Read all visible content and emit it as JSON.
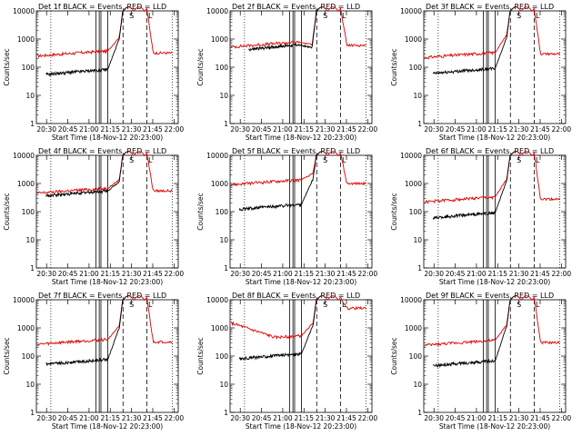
{
  "chart_data": [
    {
      "type": "line",
      "title": "Det 1f BLACK = Events, RED = LLD",
      "xlabel": "Start Time (18-Nov-12 20:23:00)",
      "ylabel": "Counts/sec",
      "ylim": [
        1,
        10000
      ],
      "yscale": "log",
      "yticks": [
        "1",
        "10",
        "100",
        "1000",
        "10000"
      ],
      "xticks": [
        "20:30",
        "20:45",
        "21:00",
        "21:15",
        "21:30",
        "21:45",
        "22:00"
      ],
      "grid": false,
      "black": {
        "start": 20.49,
        "end": 21.46,
        "base": 55,
        "ramp_at": 21.22,
        "ramp_to": 900
      },
      "red": {
        "start": 20.39,
        "end": 21.98,
        "base": 250,
        "end_level": 320,
        "ramp_at": 21.22,
        "ramp_to": 1100
      },
      "peak_level": 12000,
      "peak_start": 21.4,
      "peak_end": 21.68,
      "solid_lines": [
        21.08,
        21.12,
        21.14,
        21.22
      ],
      "dash_lines": [
        21.4,
        21.68
      ],
      "dot_lines": [
        20.55,
        21.98
      ],
      "markers": [
        {
          "x": 21.5,
          "label": "S"
        },
        {
          "x": 21.72,
          "label": "L"
        }
      ]
    },
    {
      "type": "line",
      "title": "Det 2f BLACK = Events, RED = LLD",
      "xlabel": "Start Time (18-Nov-12 20:23:00)",
      "ylabel": "Counts/sec",
      "ylim": [
        1,
        10000
      ],
      "yscale": "log",
      "yticks": [
        "1",
        "10",
        "100",
        "1000",
        "10000"
      ],
      "xticks": [
        "20:30",
        "20:45",
        "21:00",
        "21:15",
        "21:30",
        "21:45",
        "22:00"
      ],
      "grid": false,
      "black": {
        "start": 20.6,
        "end": 21.46,
        "base": 420,
        "ramp_at": 21.18,
        "ramp_to": 500
      },
      "red": {
        "start": 20.39,
        "end": 21.98,
        "base": 520,
        "end_level": 600,
        "ramp_at": 21.18,
        "ramp_to": 650
      },
      "peak_level": 12000,
      "peak_start": 21.4,
      "peak_end": 21.68,
      "solid_lines": [
        21.08,
        21.12,
        21.14,
        21.22
      ],
      "dash_lines": [
        21.4,
        21.68
      ],
      "dot_lines": [
        20.55,
        21.98
      ],
      "markers": [
        {
          "x": 21.5,
          "label": "S"
        },
        {
          "x": 21.72,
          "label": "L"
        }
      ]
    },
    {
      "type": "line",
      "title": "Det 3f BLACK = Events, RED = LLD",
      "xlabel": "Start Time (18-Nov-12 20:23:00)",
      "ylabel": "Counts/sec",
      "ylim": [
        1,
        10000
      ],
      "yscale": "log",
      "yticks": [
        "1",
        "10",
        "100",
        "1000",
        "10000"
      ],
      "xticks": [
        "20:30",
        "20:45",
        "21:00",
        "21:15",
        "21:30",
        "21:45",
        "22:00"
      ],
      "grid": false,
      "black": {
        "start": 20.49,
        "end": 21.46,
        "base": 60,
        "ramp_at": 21.22,
        "ramp_to": 1000
      },
      "red": {
        "start": 20.39,
        "end": 21.98,
        "base": 220,
        "end_level": 300,
        "ramp_at": 21.22,
        "ramp_to": 1300
      },
      "peak_level": 12000,
      "peak_start": 21.4,
      "peak_end": 21.68,
      "solid_lines": [
        21.08,
        21.12,
        21.14,
        21.22
      ],
      "dash_lines": [
        21.4,
        21.68
      ],
      "dot_lines": [
        20.55,
        21.98
      ],
      "markers": [
        {
          "x": 21.5,
          "label": "S"
        },
        {
          "x": 21.72,
          "label": "L"
        }
      ]
    },
    {
      "type": "line",
      "title": "Det 4f BLACK = Events, RED = LLD",
      "xlabel": "Start Time (18-Nov-12 20:23:00)",
      "ylabel": "Counts/sec",
      "ylim": [
        1,
        10000
      ],
      "yscale": "log",
      "yticks": [
        "1",
        "10",
        "100",
        "1000",
        "10000"
      ],
      "xticks": [
        "20:30",
        "20:45",
        "21:00",
        "21:15",
        "21:30",
        "21:45",
        "22:00"
      ],
      "grid": false,
      "black": {
        "start": 20.49,
        "end": 21.46,
        "base": 360,
        "ramp_at": 21.22,
        "ramp_to": 1100
      },
      "red": {
        "start": 20.39,
        "end": 21.98,
        "base": 450,
        "end_level": 550,
        "ramp_at": 21.22,
        "ramp_to": 1300
      },
      "peak_level": 12000,
      "peak_start": 21.4,
      "peak_end": 21.68,
      "solid_lines": [
        21.08,
        21.12,
        21.14,
        21.22
      ],
      "dash_lines": [
        21.4,
        21.68
      ],
      "dot_lines": [
        20.55,
        21.98
      ],
      "markers": [
        {
          "x": 21.5,
          "label": "S"
        },
        {
          "x": 21.72,
          "label": "L"
        }
      ]
    },
    {
      "type": "line",
      "title": "Det 5f BLACK = Events, RED = LLD",
      "xlabel": "Start Time (18-Nov-12 20:23:00)",
      "ylabel": "Counts/sec",
      "ylim": [
        1,
        10000
      ],
      "yscale": "log",
      "yticks": [
        "1",
        "10",
        "100",
        "1000",
        "10000"
      ],
      "xticks": [
        "20:30",
        "20:45",
        "21:00",
        "21:15",
        "21:30",
        "21:45",
        "22:00"
      ],
      "grid": false,
      "black": {
        "start": 20.49,
        "end": 21.46,
        "base": 120,
        "ramp_at": 21.22,
        "ramp_to": 1300
      },
      "red": {
        "start": 20.39,
        "end": 21.98,
        "base": 900,
        "end_level": 1000,
        "ramp_at": 21.22,
        "ramp_to": 2200
      },
      "peak_level": 12000,
      "peak_start": 21.4,
      "peak_end": 21.68,
      "solid_lines": [
        21.08,
        21.12,
        21.14,
        21.22
      ],
      "dash_lines": [
        21.4,
        21.68
      ],
      "dot_lines": [
        20.55,
        21.98
      ],
      "markers": [
        {
          "x": 21.5,
          "label": "S"
        },
        {
          "x": 21.72,
          "label": "L"
        }
      ]
    },
    {
      "type": "line",
      "title": "Det 6f BLACK = Events, RED = LLD",
      "xlabel": "Start Time (18-Nov-12 20:23:00)",
      "ylabel": "Counts/sec",
      "ylim": [
        1,
        10000
      ],
      "yscale": "log",
      "yticks": [
        "1",
        "10",
        "100",
        "1000",
        "10000"
      ],
      "xticks": [
        "20:30",
        "20:45",
        "21:00",
        "21:15",
        "21:30",
        "21:45",
        "22:00"
      ],
      "grid": false,
      "black": {
        "start": 20.49,
        "end": 21.46,
        "base": 60,
        "ramp_at": 21.22,
        "ramp_to": 1100
      },
      "red": {
        "start": 20.39,
        "end": 21.98,
        "base": 220,
        "end_level": 280,
        "ramp_at": 21.22,
        "ramp_to": 1300
      },
      "peak_level": 12000,
      "peak_start": 21.4,
      "peak_end": 21.68,
      "solid_lines": [
        21.08,
        21.12,
        21.14,
        21.22
      ],
      "dash_lines": [
        21.4,
        21.68
      ],
      "dot_lines": [
        20.55,
        21.98
      ],
      "markers": [
        {
          "x": 21.5,
          "label": "S"
        },
        {
          "x": 21.72,
          "label": "L"
        }
      ]
    },
    {
      "type": "line",
      "title": "Det 7f BLACK = Events, RED = LLD",
      "xlabel": "Start Time (18-Nov-12 20:23:00)",
      "ylabel": "Counts/sec",
      "ylim": [
        1,
        10000
      ],
      "yscale": "log",
      "yticks": [
        "1",
        "10",
        "100",
        "1000",
        "10000"
      ],
      "xticks": [
        "20:30",
        "20:45",
        "21:00",
        "21:15",
        "21:30",
        "21:45",
        "22:00"
      ],
      "grid": false,
      "black": {
        "start": 20.49,
        "end": 21.46,
        "base": 50,
        "ramp_at": 21.22,
        "ramp_to": 900
      },
      "red": {
        "start": 20.39,
        "end": 21.98,
        "base": 260,
        "end_level": 320,
        "ramp_at": 21.22,
        "ramp_to": 1100
      },
      "peak_level": 12000,
      "peak_start": 21.4,
      "peak_end": 21.68,
      "solid_lines": [
        21.08,
        21.12,
        21.14,
        21.22
      ],
      "dash_lines": [
        21.4,
        21.68
      ],
      "dot_lines": [
        20.55,
        21.98
      ],
      "markers": [
        {
          "x": 21.5,
          "label": "S"
        },
        {
          "x": 21.72,
          "label": "L"
        }
      ]
    },
    {
      "type": "line",
      "title": "Det 8f BLACK = Events, RED = LLD",
      "xlabel": "Start Time (18-Nov-12 20:23:00)",
      "ylabel": "Counts/sec",
      "ylim": [
        1,
        10000
      ],
      "yscale": "log",
      "yticks": [
        "1",
        "10",
        "100",
        "1000",
        "10000"
      ],
      "xticks": [
        "20:30",
        "20:45",
        "21:00",
        "21:15",
        "21:30",
        "21:45",
        "22:00"
      ],
      "grid": false,
      "black": {
        "start": 20.49,
        "end": 21.46,
        "base": 80,
        "ramp_at": 21.22,
        "ramp_to": 1100
      },
      "red": {
        "start": 20.39,
        "end": 21.98,
        "base": 350,
        "start_level": 1500,
        "end_level": 5000,
        "ramp_at": 21.22,
        "ramp_to": 1400
      },
      "peak_level": 12000,
      "peak_start": 21.4,
      "peak_end": 21.68,
      "solid_lines": [
        21.08,
        21.12,
        21.14,
        21.22
      ],
      "dash_lines": [
        21.4,
        21.68
      ],
      "dot_lines": [
        20.55,
        21.98
      ],
      "markers": [
        {
          "x": 21.5,
          "label": "S"
        },
        {
          "x": 21.72,
          "label": "L"
        }
      ]
    },
    {
      "type": "line",
      "title": "Det 9f BLACK = Events, RED = LLD",
      "xlabel": "Start Time (18-Nov-12 20:23:00)",
      "ylabel": "Counts/sec",
      "ylim": [
        1,
        10000
      ],
      "yscale": "log",
      "yticks": [
        "1",
        "10",
        "100",
        "1000",
        "10000"
      ],
      "xticks": [
        "20:30",
        "20:45",
        "21:00",
        "21:15",
        "21:30",
        "21:45",
        "22:00"
      ],
      "grid": false,
      "black": {
        "start": 20.49,
        "end": 21.46,
        "base": 45,
        "ramp_at": 21.22,
        "ramp_to": 1000
      },
      "red": {
        "start": 20.39,
        "end": 21.98,
        "base": 240,
        "end_level": 300,
        "ramp_at": 21.22,
        "ramp_to": 1200
      },
      "peak_level": 12000,
      "peak_start": 21.4,
      "peak_end": 21.68,
      "solid_lines": [
        21.08,
        21.12,
        21.14,
        21.22
      ],
      "dash_lines": [
        21.4,
        21.68
      ],
      "dot_lines": [
        20.55,
        21.98
      ],
      "markers": [
        {
          "x": 21.5,
          "label": "S"
        },
        {
          "x": 21.72,
          "label": "L"
        }
      ]
    }
  ],
  "colors": {
    "events": "#000000",
    "lld": "#dd0000",
    "axes": "#000000",
    "background": "#ffffff"
  }
}
